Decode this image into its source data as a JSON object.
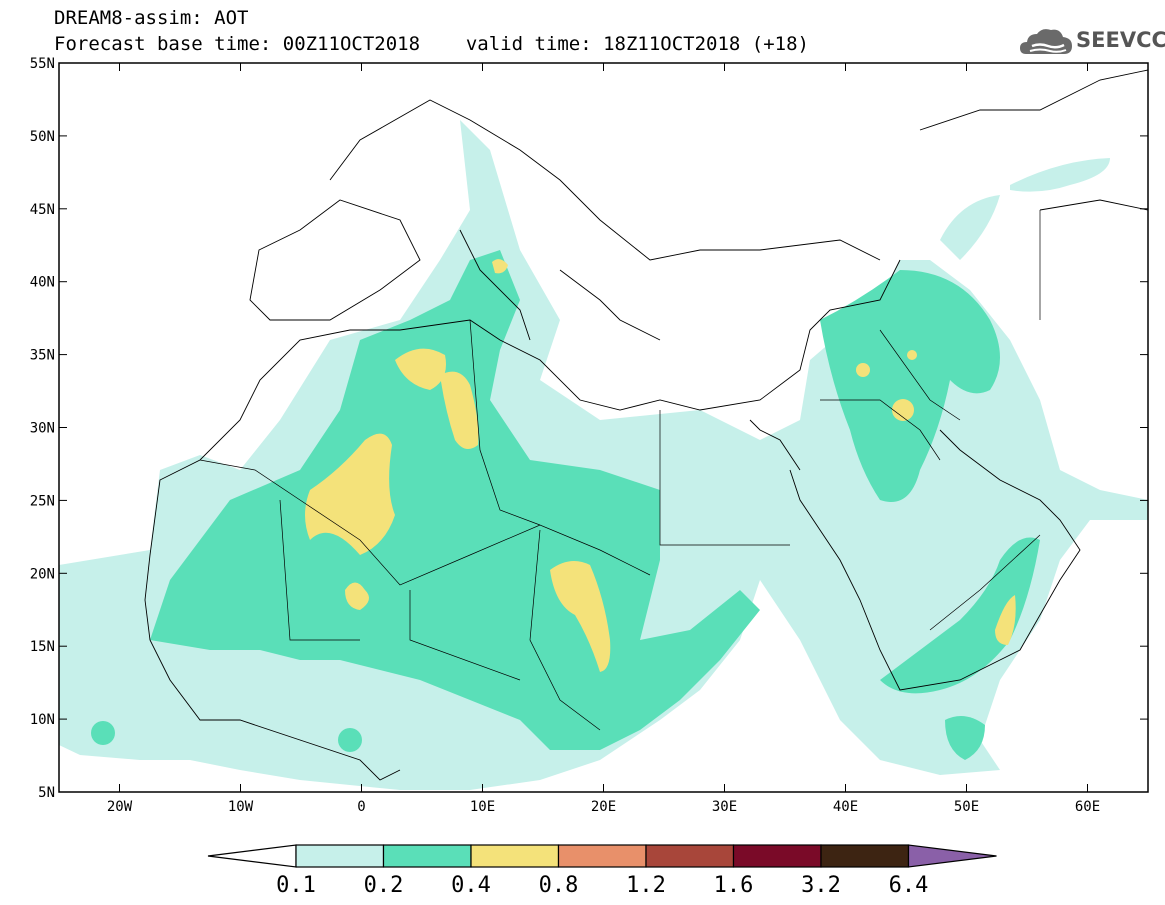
{
  "header": {
    "title": "DREAM8-assim: AOT",
    "forecast_base": "Forecast base time: 00Z11OCT2018",
    "valid_time": "valid time: 18Z11OCT2018 (+18)"
  },
  "logo": {
    "text": "SEEVCCC",
    "icon": "cloud-icon"
  },
  "map": {
    "variable": "AOT",
    "lat_labels": [
      "55N",
      "50N",
      "45N",
      "40N",
      "35N",
      "30N",
      "25N",
      "20N",
      "15N",
      "10N",
      "5N"
    ],
    "lon_labels": [
      "20W",
      "10W",
      "0",
      "10E",
      "20E",
      "30E",
      "40E",
      "50E",
      "60E"
    ]
  },
  "colorbar": {
    "labels": [
      "0.1",
      "0.2",
      "0.4",
      "0.8",
      "1.2",
      "1.6",
      "3.2",
      "6.4"
    ],
    "colors": [
      "#c6f0ea",
      "#5adfb8",
      "#f4e27a",
      "#e8906a",
      "#a8463a",
      "#7a0a28",
      "#3d2412",
      "#8a60a8"
    ],
    "low_extend_color": "#ffffff"
  }
}
